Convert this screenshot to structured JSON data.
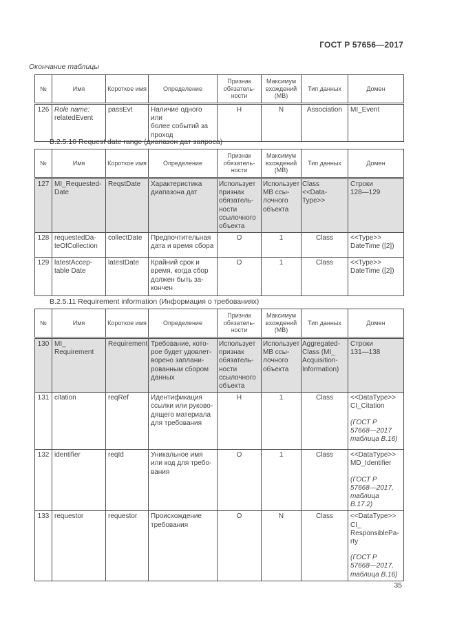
{
  "page": {
    "header": "ГОСТ Р 57656—2017",
    "continuation_label": "Окончание таблицы",
    "page_number": "35"
  },
  "colors": {
    "row_shade": "#e0e0e0",
    "border": "#4e4e4e",
    "text": "#434343",
    "background": "#ffffff"
  },
  "columns": {
    "num": "№",
    "name": "Имя",
    "short_name": "Короткое имя",
    "definition": "Определение",
    "mandatory": "Признак\nобязатель-\nности",
    "max_occurs": "Максимум\nвхождений\n(МВ)",
    "data_type": "Тип данных",
    "domain": "Домен"
  },
  "table_end": {
    "rows": [
      {
        "num": "126",
        "name_role": "Role name:",
        "name": "relatedEvent",
        "short": "passEvt",
        "definition": "Наличие одного или\nболее событий за\nпроход",
        "mandatory": "Н",
        "max": "N",
        "type": "Association",
        "domain": "MI_Event"
      }
    ]
  },
  "section_b2510": {
    "heading": "В.2.5.10 Request date range (диапазон дат запроса)",
    "rows": [
      {
        "num": "127",
        "name": "MI_Requested-\nDate",
        "short": "ReqstDate",
        "definition": "Характеристика\nдиапазона дат",
        "mandatory": "Использует\nпризнак\nобязатель-\nности\nссылочного\nобъекта",
        "max": "Использует\nМВ ссы-\nлочного\nобъекта",
        "type": "Class\n<<Data-\nType>>",
        "domain": "Строки\n128—129"
      },
      {
        "num": "128",
        "name": "requestedDa-\nteOfCollection",
        "short": "collectDate",
        "definition": "Предпочтительная\nдата и время сбора",
        "mandatory": "О",
        "max": "1",
        "type": "Class",
        "domain": "<<Type>>\nDateTime ([2])"
      },
      {
        "num": "129",
        "name": "latestAccep-\ntable Date",
        "short": "latestDate",
        "definition": "Крайний срок и\nвремя, когда сбор\nдолжен быть за-\nкончен",
        "mandatory": "О",
        "max": "1",
        "type": "Class",
        "domain": "<<Type>>\nDateTime ([2])"
      }
    ]
  },
  "section_b2511": {
    "heading": "В.2.5.11 Requirement information (Информация о требованиях)",
    "rows": [
      {
        "num": "130",
        "name": "MI_\nRequirement",
        "short": "Requirement",
        "definition": "Требование, кото-\nрое будет удовлет-\nворено заплани-\nрованным сбором\nданных",
        "mandatory": "Использует\nпризнак\nобязатель-\nности\nссылочного\nобъекта",
        "max": "Использует\nМВ ссы-\nлочного\nобъекта",
        "type": "Aggregated-\nClass (MI_\nAcquisition-\nInformation)",
        "domain": "Строки\n131—138"
      },
      {
        "num": "131",
        "name": "citation",
        "short": "reqRef",
        "definition": "Идентификация\nссылки или руково-\nдящего материала\nдля требования",
        "mandatory": "Н",
        "max": "1",
        "type": "Class",
        "domain": "<<DataType>>\nCI_Citation",
        "domain_note": "(ГОСТ Р\n57668—2017\nтаблица В.16)"
      },
      {
        "num": "132",
        "name": "identifier",
        "short": "reqId",
        "definition": "Уникальное имя\nили код для требо-\nвания",
        "mandatory": "О",
        "max": "1",
        "type": "Class",
        "domain": "<<DataType>>\nMD_Identifier",
        "domain_note": "(ГОСТ Р\n57668—2017,\nтаблица\nВ.17.2)"
      },
      {
        "num": "133",
        "name": "requestor",
        "short": "requestor",
        "definition": "Происхождение\nтребования",
        "mandatory": "О",
        "max": "N",
        "type": "Class",
        "domain": "<<DataType>>\nCI_\nResponsiblePa-\nrty",
        "domain_note": "(ГОСТ Р\n57668—2017,\nтаблица В.16)"
      }
    ]
  }
}
